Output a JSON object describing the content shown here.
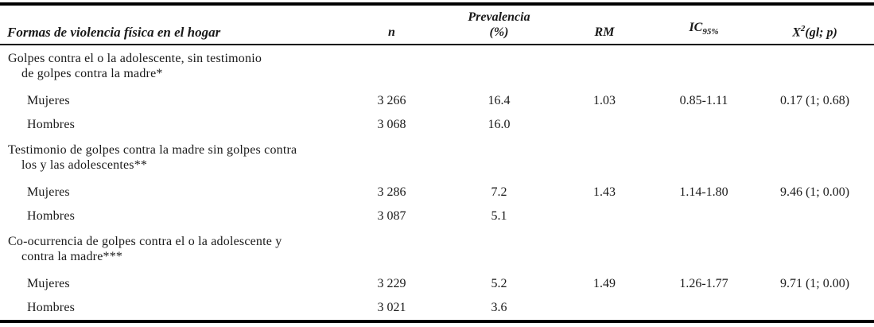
{
  "table": {
    "header": {
      "label": "Formas de violencia física en el hogar",
      "n": "n",
      "prevalencia_line1": "Prevalencia",
      "prevalencia_line2": "(%)",
      "rm": "RM",
      "ic_base": "IC",
      "ic_sub": "95%",
      "x2_base": "X",
      "x2_sup": "2",
      "x2_tail": "(gl; p)"
    },
    "sections": [
      {
        "label_line1": "Golpes contra el o la adolescente, sin testimonio",
        "label_line2": "de golpes contra la madre*",
        "rows": [
          {
            "label": "Mujeres",
            "n": "3 266",
            "prevalencia": "16.4",
            "rm": "1.03",
            "ic95": "0.85-1.11",
            "x2": "0.17 (1; 0.68)"
          },
          {
            "label": "Hombres",
            "n": "3 068",
            "prevalencia": "16.0",
            "rm": "",
            "ic95": "",
            "x2": ""
          }
        ]
      },
      {
        "label_line1": "Testimonio de golpes contra la madre sin golpes contra",
        "label_line2": "los y las adolescentes**",
        "rows": [
          {
            "label": "Mujeres",
            "n": "3 286",
            "prevalencia": "7.2",
            "rm": "1.43",
            "ic95": "1.14-1.80",
            "x2": "9.46 (1; 0.00)"
          },
          {
            "label": "Hombres",
            "n": "3 087",
            "prevalencia": "5.1",
            "rm": "",
            "ic95": "",
            "x2": ""
          }
        ]
      },
      {
        "label_line1": "Co-ocurrencia de golpes contra el o la adolescente y",
        "label_line2": "contra la madre***",
        "rows": [
          {
            "label": "Mujeres",
            "n": "3 229",
            "prevalencia": "5.2",
            "rm": "1.49",
            "ic95": "1.26-1.77",
            "x2": "9.71 (1; 0.00)"
          },
          {
            "label": "Hombres",
            "n": "3 021",
            "prevalencia": "3.6",
            "rm": "",
            "ic95": "",
            "x2": ""
          }
        ]
      }
    ],
    "colors": {
      "text": "#1a1a1a",
      "rule": "#000000",
      "background": "#ffffff"
    }
  },
  "chart_data": {
    "type": "table",
    "columns": [
      "Formas de violencia física en el hogar",
      "n",
      "Prevalencia (%)",
      "RM",
      "IC 95%",
      "X²(gl; p)"
    ],
    "rows": [
      [
        "Golpes contra el o la adolescente, sin testimonio de golpes contra la madre*",
        "",
        "",
        "",
        "",
        ""
      ],
      [
        "Mujeres",
        "3 266",
        "16.4",
        "1.03",
        "0.85-1.11",
        "0.17 (1; 0.68)"
      ],
      [
        "Hombres",
        "3 068",
        "16.0",
        "",
        "",
        ""
      ],
      [
        "Testimonio de golpes contra la madre sin golpes contra los y las adolescentes**",
        "",
        "",
        "",
        "",
        ""
      ],
      [
        "Mujeres",
        "3 286",
        "7.2",
        "1.43",
        "1.14-1.80",
        "9.46 (1; 0.00)"
      ],
      [
        "Hombres",
        "3 087",
        "5.1",
        "",
        "",
        ""
      ],
      [
        "Co-ocurrencia de golpes contra el o la adolescente y contra la madre***",
        "",
        "",
        "",
        "",
        ""
      ],
      [
        "Mujeres",
        "3 229",
        "5.2",
        "1.49",
        "1.26-1.77",
        "9.71 (1; 0.00)"
      ],
      [
        "Hombres",
        "3 021",
        "3.6",
        "",
        "",
        ""
      ]
    ]
  }
}
